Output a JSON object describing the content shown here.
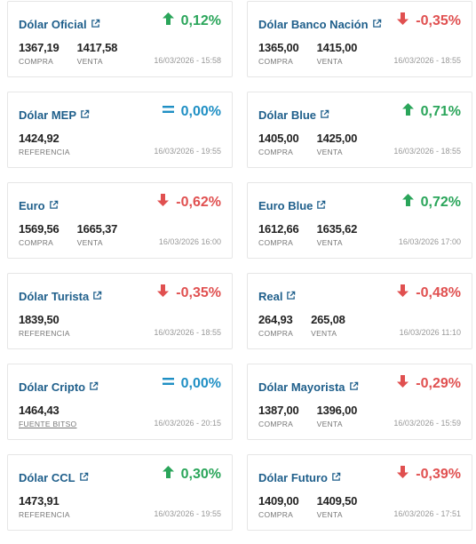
{
  "colors": {
    "up": "#2aa55a",
    "down": "#e05050",
    "flat": "#1f8fc4",
    "title": "#1f5f8b"
  },
  "cards": [
    {
      "title": "Dólar Oficial",
      "direction": "up",
      "change": "0,12%",
      "values": [
        {
          "num": "1367,19",
          "label": "COMPRA"
        },
        {
          "num": "1417,58",
          "label": "VENTA"
        }
      ],
      "timestamp": "16/03/2026 - 15:58"
    },
    {
      "title": "Dólar Banco Nación",
      "direction": "down",
      "change": "-0,35%",
      "values": [
        {
          "num": "1365,00",
          "label": "COMPRA"
        },
        {
          "num": "1415,00",
          "label": "VENTA"
        }
      ],
      "timestamp": "16/03/2026 - 18:55"
    },
    {
      "title": "Dólar MEP",
      "direction": "flat",
      "change": "0,00%",
      "values": [
        {
          "num": "1424,92",
          "label": "REFERENCIA"
        }
      ],
      "timestamp": "16/03/2026 - 19:55"
    },
    {
      "title": "Dólar Blue",
      "direction": "up",
      "change": "0,71%",
      "values": [
        {
          "num": "1405,00",
          "label": "COMPRA"
        },
        {
          "num": "1425,00",
          "label": "VENTA"
        }
      ],
      "timestamp": "16/03/2026 - 18:55"
    },
    {
      "title": "Euro",
      "direction": "down",
      "change": "-0,62%",
      "values": [
        {
          "num": "1569,56",
          "label": "COMPRA"
        },
        {
          "num": "1665,37",
          "label": "VENTA"
        }
      ],
      "timestamp": "16/03/2026 16:00"
    },
    {
      "title": "Euro Blue",
      "direction": "up",
      "change": "0,72%",
      "values": [
        {
          "num": "1612,66",
          "label": "COMPRA"
        },
        {
          "num": "1635,62",
          "label": "VENTA"
        }
      ],
      "timestamp": "16/03/2026 17:00"
    },
    {
      "title": "Dólar Turista",
      "direction": "down",
      "change": "-0,35%",
      "values": [
        {
          "num": "1839,50",
          "label": "REFERENCIA"
        }
      ],
      "timestamp": "16/03/2026 - 18:55"
    },
    {
      "title": "Real",
      "direction": "down",
      "change": "-0,48%",
      "values": [
        {
          "num": "264,93",
          "label": "COMPRA"
        },
        {
          "num": "265,08",
          "label": "VENTA"
        }
      ],
      "timestamp": "16/03/2026 11:10"
    },
    {
      "title": "Dólar Cripto",
      "direction": "flat",
      "change": "0,00%",
      "values": [
        {
          "num": "1464,43",
          "label": "FUENTE BITSO",
          "link": true
        }
      ],
      "timestamp": "16/03/2026 - 20:15"
    },
    {
      "title": "Dólar Mayorista",
      "direction": "down",
      "change": "-0,29%",
      "values": [
        {
          "num": "1387,00",
          "label": "COMPRA"
        },
        {
          "num": "1396,00",
          "label": "VENTA"
        }
      ],
      "timestamp": "16/03/2026 - 15:59"
    },
    {
      "title": "Dólar CCL",
      "direction": "up",
      "change": "0,30%",
      "values": [
        {
          "num": "1473,91",
          "label": "REFERENCIA"
        }
      ],
      "timestamp": "16/03/2026 - 19:55"
    },
    {
      "title": "Dólar Futuro",
      "direction": "down",
      "change": "-0,39%",
      "values": [
        {
          "num": "1409,00",
          "label": "COMPRA"
        },
        {
          "num": "1409,50",
          "label": "VENTA"
        }
      ],
      "timestamp": "16/03/2026 - 17:51"
    }
  ]
}
